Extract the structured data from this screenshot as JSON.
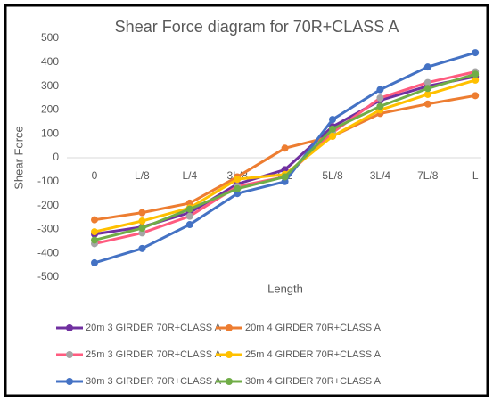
{
  "chart_data": {
    "type": "line",
    "title": "Shear Force diagram for 70R+CLASS A",
    "x_label": "Length",
    "y_label": "Shear Force",
    "categories": [
      "0",
      "L/8",
      "L/4",
      "3L/8",
      "L/2",
      "5L/8",
      "3L/4",
      "7L/8",
      "L"
    ],
    "ylim": [
      -500,
      500
    ],
    "yticks": [
      -500,
      -400,
      -300,
      -200,
      -100,
      0,
      100,
      200,
      300,
      400,
      500
    ],
    "grid": false,
    "series": [
      {
        "name": "20m 3 GIRDER 70R+CLASS A",
        "color": "#7030a0",
        "values": [
          -320,
          -290,
          -230,
          -110,
          -50,
          130,
          240,
          300,
          340
        ]
      },
      {
        "name": "20m 4 GIRDER 70R+CLASS A",
        "color": "#ed7d31",
        "values": [
          -260,
          -230,
          -190,
          -80,
          40,
          90,
          185,
          225,
          260
        ]
      },
      {
        "name": "25m 3 GIRDER 70R+CLASS A",
        "color": "#ff5b7f",
        "marker_color": "#a5a5a5",
        "values": [
          -360,
          -315,
          -245,
          -120,
          -80,
          105,
          250,
          315,
          360
        ]
      },
      {
        "name": "25m 4 GIRDER 70R+CLASS A",
        "color": "#ffc000",
        "values": [
          -310,
          -265,
          -210,
          -90,
          -70,
          90,
          200,
          265,
          325
        ]
      },
      {
        "name": "30m 3 GIRDER 70R+CLASS A",
        "color": "#4472c4",
        "values": [
          -440,
          -380,
          -280,
          -150,
          -100,
          160,
          285,
          380,
          440
        ]
      },
      {
        "name": "30m 4 GIRDER 70R+CLASS A",
        "color": "#70ad47",
        "values": [
          -345,
          -295,
          -215,
          -130,
          -80,
          120,
          215,
          290,
          350
        ]
      }
    ]
  }
}
